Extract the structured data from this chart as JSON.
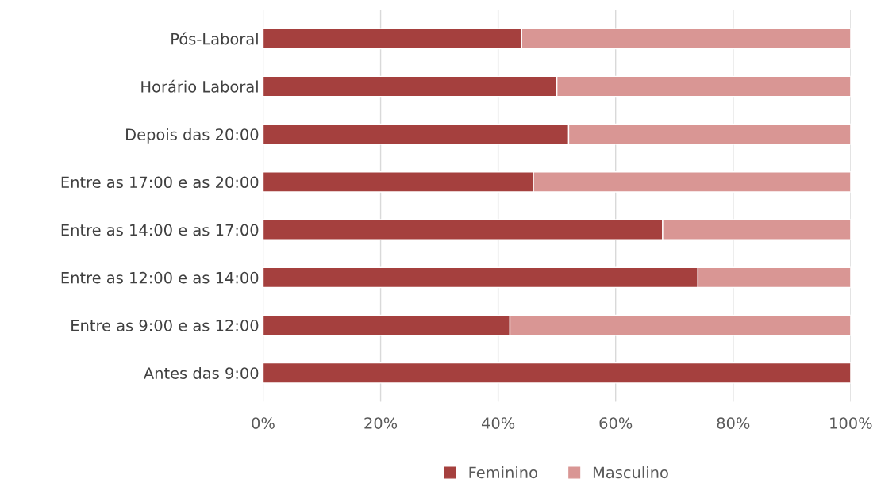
{
  "chart_data": {
    "type": "bar",
    "orientation": "horizontal",
    "stacked": true,
    "categories": [
      "Pós-Laboral",
      "Horário Laboral",
      "Depois das 20:00",
      "Entre as 17:00 e as 20:00",
      "Entre as 14:00 e as 17:00",
      "Entre as 12:00 e as 14:00",
      "Entre as 9:00 e as 12:00",
      "Antes das 9:00"
    ],
    "series": [
      {
        "name": "Feminino",
        "color": "#a5403e",
        "values": [
          44,
          50,
          52,
          46,
          68,
          74,
          42,
          100
        ]
      },
      {
        "name": "Masculino",
        "color": "#d99694",
        "values": [
          56,
          50,
          48,
          54,
          32,
          26,
          58,
          0
        ]
      }
    ],
    "xlim": [
      0,
      100
    ],
    "xticks": [
      {
        "value": 0,
        "label": "0%"
      },
      {
        "value": 20,
        "label": "20%"
      },
      {
        "value": 40,
        "label": "40%"
      },
      {
        "value": 60,
        "label": "60%"
      },
      {
        "value": 80,
        "label": "80%"
      },
      {
        "value": 100,
        "label": "100%"
      }
    ],
    "grid": "x",
    "legend": "bottom"
  }
}
